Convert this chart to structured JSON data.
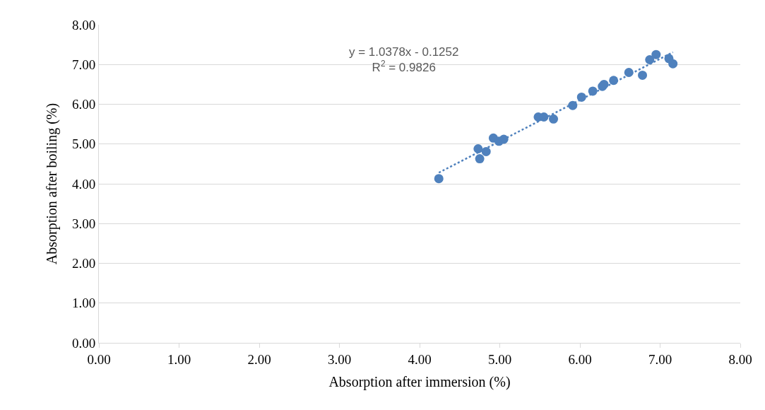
{
  "chart_data": {
    "type": "scatter",
    "xlabel": "Absorption after immersion (%)",
    "ylabel": "Absorption after boiling (%)",
    "xlim": [
      0,
      8
    ],
    "ylim": [
      0,
      8
    ],
    "xticks": [
      {
        "value": 0,
        "label": "0.00"
      },
      {
        "value": 1,
        "label": "1.00"
      },
      {
        "value": 2,
        "label": "2.00"
      },
      {
        "value": 3,
        "label": "3.00"
      },
      {
        "value": 4,
        "label": "4.00"
      },
      {
        "value": 5,
        "label": "5.00"
      },
      {
        "value": 6,
        "label": "6.00"
      },
      {
        "value": 7,
        "label": "7.00"
      },
      {
        "value": 8,
        "label": "8.00"
      }
    ],
    "yticks": [
      {
        "value": 0,
        "label": "0.00"
      },
      {
        "value": 1,
        "label": "1.00"
      },
      {
        "value": 2,
        "label": "2.00"
      },
      {
        "value": 3,
        "label": "3.00"
      },
      {
        "value": 4,
        "label": "4.00"
      },
      {
        "value": 5,
        "label": "5.00"
      },
      {
        "value": 6,
        "label": "6.00"
      },
      {
        "value": 7,
        "label": "7.00"
      },
      {
        "value": 8,
        "label": "8.00"
      }
    ],
    "grid": "y",
    "marker": "circle",
    "series": [
      {
        "color": "#4f81bd",
        "x": [
          4.24,
          4.73,
          4.75,
          4.83,
          4.92,
          4.99,
          5.05,
          5.48,
          5.55,
          5.67,
          5.91,
          6.02,
          6.16,
          6.28,
          6.3,
          6.42,
          6.61,
          6.78,
          6.87,
          6.95,
          7.11,
          7.16
        ],
        "values": [
          4.13,
          4.88,
          4.63,
          4.81,
          5.15,
          5.07,
          5.12,
          5.68,
          5.68,
          5.63,
          5.97,
          6.18,
          6.33,
          6.45,
          6.5,
          6.6,
          6.8,
          6.73,
          7.12,
          7.25,
          7.15,
          7.02
        ]
      },
      {
        "type": "line",
        "color": "#4f81bd",
        "line_style": "dotted",
        "marker": "none",
        "x": [
          4.24,
          7.16
        ],
        "values": [
          4.28,
          7.31
        ]
      }
    ],
    "annotations": [
      "y = 1.0378x - 0.1252\nR$^{2}$ = 0.9826"
    ]
  }
}
